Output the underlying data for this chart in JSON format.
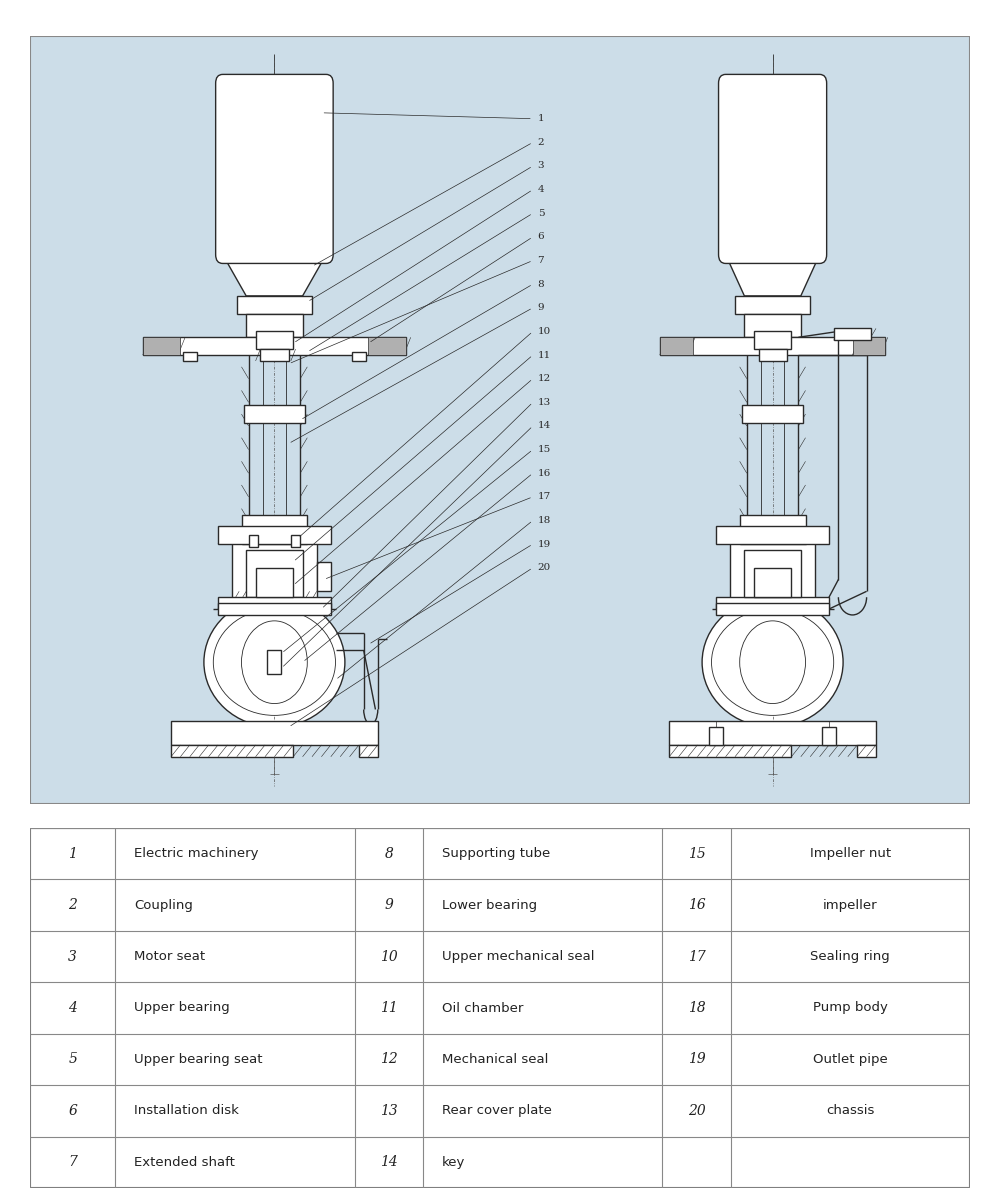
{
  "bg_color": "#ccdde8",
  "line_color": "#2a2a2a",
  "table_border_color": "#666666",
  "table_alt_row": "#dce8f0",
  "table_white_row": "#ffffff",
  "parts": [
    [
      1,
      "Electric machinery",
      8,
      "Supporting tube",
      15,
      "Impeller nut"
    ],
    [
      2,
      "Coupling",
      9,
      "Lower bearing",
      16,
      "impeller"
    ],
    [
      3,
      "Motor seat",
      10,
      "Upper mechanical seal",
      17,
      "Sealing ring"
    ],
    [
      4,
      "Upper bearing",
      11,
      "Oil chamber",
      18,
      "Pump body"
    ],
    [
      5,
      "Upper bearing seat",
      12,
      "Mechanical seal",
      19,
      "Outlet pipe"
    ],
    [
      6,
      "Installation disk",
      13,
      "Rear cover plate",
      20,
      "chassis"
    ],
    [
      7,
      "Extended shaft",
      14,
      "key",
      "",
      ""
    ]
  ],
  "fig_width": 10,
  "fig_height": 12,
  "dpi": 100
}
